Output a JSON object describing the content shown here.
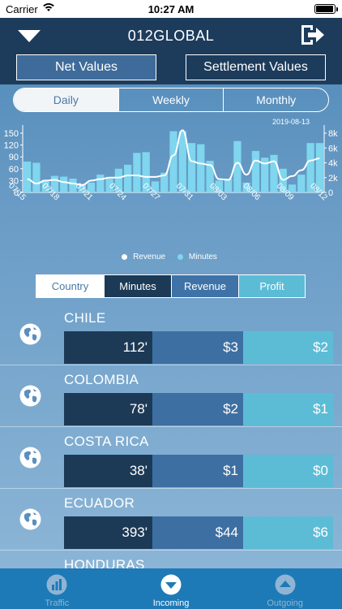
{
  "status": {
    "carrier": "Carrier",
    "time": "10:27 AM"
  },
  "header": {
    "title": "012GLOBAL",
    "net_label": "Net Values",
    "settlement_label": "Settlement Values"
  },
  "period_tabs": [
    "Daily",
    "Weekly",
    "Monthly"
  ],
  "chart_data": {
    "type": "bar",
    "date_label": "2019-08-13",
    "x_tick_labels": [
      "07/15",
      "07/18",
      "07/21",
      "07/24",
      "07/27",
      "07/31",
      "08/03",
      "08/06",
      "08/09",
      "08/12"
    ],
    "left_ticks": [
      "150",
      "120",
      "90",
      "60",
      "30",
      "0"
    ],
    "right_ticks": [
      "8k",
      "6k",
      "4k",
      "2k",
      "0"
    ],
    "ylim_left": [
      0,
      150
    ],
    "ylim_right": [
      0,
      8000
    ],
    "series": [
      {
        "name": "Minutes",
        "axis": "left",
        "values": [
          78,
          75,
          32,
          42,
          40,
          35,
          20,
          25,
          45,
          35,
          60,
          70,
          100,
          102,
          28,
          50,
          155,
          155,
          125,
          122,
          80,
          30,
          35,
          130,
          25,
          105,
          88,
          95,
          60,
          20,
          45,
          125,
          125
        ]
      },
      {
        "name": "Revenue",
        "axis": "right",
        "values": [
          1800,
          1200,
          1600,
          1700,
          1400,
          1200,
          1000,
          1600,
          1800,
          2000,
          2000,
          2300,
          2300,
          2100,
          2100,
          2300,
          5000,
          8400,
          4200,
          3900,
          3700,
          1800,
          1700,
          4000,
          2400,
          4300,
          3900,
          4200,
          1700,
          2200,
          3000,
          4300,
          4600
        ]
      }
    ],
    "legend": [
      "Revenue",
      "Minutes"
    ],
    "colors": {
      "bars": "#7fd6ee",
      "line": "#ffffff"
    }
  },
  "metric_tabs": [
    "Country",
    "Minutes",
    "Revenue",
    "Profit"
  ],
  "countries": [
    {
      "name": "CHILE",
      "minutes": "112'",
      "revenue": "$3",
      "profit": "$2"
    },
    {
      "name": "COLOMBIA",
      "minutes": "78'",
      "revenue": "$2",
      "profit": "$1"
    },
    {
      "name": "COSTA RICA",
      "minutes": "38'",
      "revenue": "$1",
      "profit": "$0"
    },
    {
      "name": "ECUADOR",
      "minutes": "393'",
      "revenue": "$44",
      "profit": "$6"
    },
    {
      "name": "HONDURAS",
      "minutes": "",
      "revenue": "",
      "profit": ""
    }
  ],
  "tabbar": [
    {
      "label": "Traffic",
      "icon": "chart-icon"
    },
    {
      "label": "Incoming",
      "icon": "incoming-icon"
    },
    {
      "label": "Outgoing",
      "icon": "outgoing-icon"
    }
  ]
}
